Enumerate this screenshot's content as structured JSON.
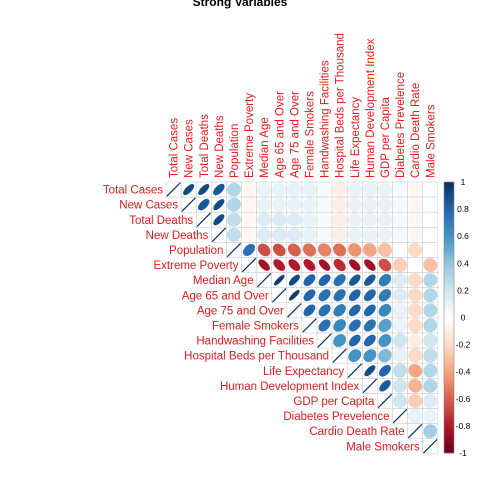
{
  "chart_data": {
    "type": "heatmap",
    "subtype": "upper-triangular correlation plot (ellipses)",
    "title": "Strong Variables",
    "variables": [
      "Total Cases",
      "New Cases",
      "Total Deaths",
      "New Deaths",
      "Population",
      "Extreme Poverty",
      "Median Age",
      "Age 65 and Over",
      "Age 75 and Over",
      "Female Smokers",
      "Handwashing Facilities",
      "Hospital Beds per Thousand",
      "Life Expectancy",
      "Human Development Index",
      "GDP per Capita",
      "Diabetes Prevelence",
      "Cardio Death Rate",
      "Male Smokers"
    ],
    "matrix": [
      [
        1,
        0.9,
        0.9,
        0.85,
        0.3,
        -0.05,
        0.1,
        0.1,
        0.1,
        0.1,
        0.05,
        -0.1,
        0.1,
        0.1,
        0.1,
        0.05,
        -0.05,
        0
      ],
      [
        0.9,
        1,
        0.85,
        0.9,
        0.3,
        -0.05,
        0.1,
        0.1,
        0.1,
        0.1,
        0.05,
        -0.1,
        0.1,
        0.1,
        0.1,
        0.05,
        -0.05,
        0
      ],
      [
        0.9,
        0.85,
        1,
        0.9,
        0.25,
        -0.05,
        0.15,
        0.15,
        0.15,
        0.1,
        0.05,
        -0.1,
        0.1,
        0.1,
        0.1,
        0.05,
        -0.05,
        0
      ],
      [
        0.85,
        0.9,
        0.9,
        1,
        0.25,
        -0.05,
        0.15,
        0.15,
        0.15,
        0.1,
        0.05,
        -0.1,
        0.1,
        0.1,
        0.1,
        0.05,
        -0.05,
        0
      ],
      [
        0.3,
        0.3,
        0.25,
        0.25,
        1,
        0.75,
        -0.65,
        -0.65,
        -0.6,
        -0.55,
        -0.5,
        -0.55,
        -0.45,
        -0.4,
        -0.3,
        0,
        -0.2,
        0
      ],
      [
        -0.05,
        -0.05,
        -0.05,
        -0.05,
        0.75,
        1,
        -0.85,
        -0.8,
        -0.8,
        -0.8,
        -0.85,
        -0.75,
        -0.85,
        -0.85,
        -0.65,
        -0.25,
        0,
        -0.3
      ],
      [
        0.1,
        0.1,
        0.15,
        0.15,
        -0.65,
        -0.85,
        1,
        0.95,
        0.9,
        0.8,
        0.8,
        0.75,
        0.85,
        0.85,
        0.7,
        0.15,
        -0.2,
        0.3
      ],
      [
        0.1,
        0.1,
        0.15,
        0.15,
        -0.65,
        -0.8,
        0.95,
        1,
        0.95,
        0.8,
        0.75,
        0.75,
        0.8,
        0.8,
        0.7,
        0.15,
        -0.2,
        0.3
      ],
      [
        0.1,
        0.1,
        0.15,
        0.15,
        -0.6,
        -0.8,
        0.9,
        0.95,
        1,
        0.8,
        0.75,
        0.7,
        0.8,
        0.8,
        0.65,
        0.1,
        -0.2,
        0.3
      ],
      [
        0.1,
        0.1,
        0.1,
        0.1,
        -0.55,
        -0.8,
        0.8,
        0.8,
        0.8,
        1,
        0.75,
        0.65,
        0.75,
        0.75,
        0.55,
        0.1,
        -0.2,
        0.3
      ],
      [
        0.05,
        0.05,
        0.05,
        0.05,
        -0.5,
        -0.85,
        0.8,
        0.75,
        0.75,
        0.75,
        1,
        0.6,
        0.8,
        0.8,
        0.6,
        0.2,
        -0.1,
        0.2
      ],
      [
        -0.1,
        -0.1,
        -0.1,
        -0.1,
        -0.55,
        -0.75,
        0.75,
        0.75,
        0.7,
        0.65,
        0.6,
        1,
        0.6,
        0.6,
        0.45,
        0.1,
        -0.2,
        0.25
      ],
      [
        0.1,
        0.1,
        0.1,
        0.1,
        -0.45,
        -0.85,
        0.85,
        0.8,
        0.8,
        0.75,
        0.8,
        0.6,
        1,
        0.9,
        0.8,
        0.25,
        -0.4,
        0.3
      ],
      [
        0.1,
        0.1,
        0.1,
        0.1,
        -0.4,
        -0.85,
        0.85,
        0.8,
        0.8,
        0.75,
        0.8,
        0.6,
        0.9,
        1,
        0.85,
        0.2,
        -0.35,
        0.3
      ],
      [
        0.1,
        0.1,
        0.1,
        0.1,
        -0.3,
        -0.65,
        0.7,
        0.7,
        0.65,
        0.55,
        0.6,
        0.45,
        0.8,
        0.85,
        1,
        0.2,
        -0.25,
        0.15
      ],
      [
        0.05,
        0.05,
        0.05,
        0.05,
        0,
        -0.25,
        0.15,
        0.15,
        0.1,
        0.1,
        0.2,
        0.1,
        0.25,
        0.2,
        0.2,
        1,
        0.1,
        0.1
      ],
      [
        -0.05,
        -0.05,
        -0.05,
        -0.05,
        -0.2,
        0,
        -0.2,
        -0.2,
        -0.2,
        -0.2,
        -0.1,
        -0.2,
        -0.4,
        -0.35,
        -0.25,
        0.1,
        1,
        0.35
      ],
      [
        0,
        0,
        0,
        0,
        0,
        -0.3,
        0.3,
        0.3,
        0.3,
        0.3,
        0.2,
        0.25,
        0.3,
        0.3,
        0.15,
        0.1,
        0.35,
        1
      ]
    ],
    "color_scale": {
      "range": [
        -1,
        1
      ],
      "low_color": "#67001f",
      "mid_color": "#ffffff",
      "high_color": "#053061",
      "ticks": [
        "1",
        "0.8",
        "0.6",
        "0.4",
        "0.2",
        "0",
        "-0.2",
        "-0.4",
        "-0.6",
        "-0.8",
        "-1"
      ]
    },
    "label_color": "#e41a1c",
    "legend": "right"
  }
}
